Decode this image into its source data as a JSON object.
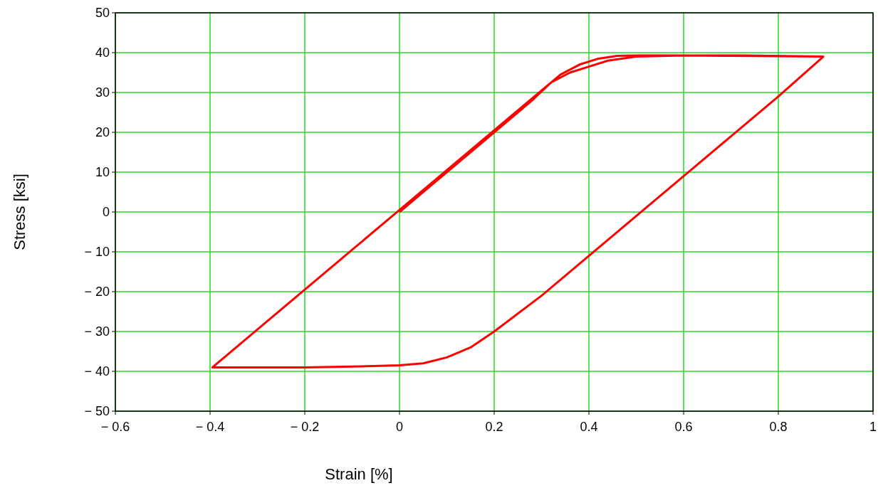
{
  "chart_data": {
    "type": "line",
    "xlabel": "Strain [%]",
    "ylabel": "Stress [ksi]",
    "xlim": [
      -0.6,
      1
    ],
    "xticks": [
      {
        "value": -0.6,
        "label": "− 0.6"
      },
      {
        "value": -0.4,
        "label": "− 0.4"
      },
      {
        "value": -0.2,
        "label": "− 0.2"
      },
      0,
      0.2,
      0.4,
      0.6,
      0.8,
      1
    ],
    "ylim": [
      -50,
      50
    ],
    "yticks": [
      {
        "value": -50,
        "label": "− 50"
      },
      {
        "value": -40,
        "label": "− 40"
      },
      {
        "value": -30,
        "label": "− 30"
      },
      {
        "value": -20,
        "label": "− 20"
      },
      {
        "value": -10,
        "label": "− 10"
      },
      0,
      10,
      20,
      30,
      40,
      50
    ],
    "grid": true,
    "marker": "none",
    "line_style": "solid",
    "series": [
      {
        "color": "#ff0000",
        "x": [
          0,
          0.1,
          0.2,
          0.28,
          0.32,
          0.36,
          0.4,
          0.44,
          0.5,
          0.6,
          0.73,
          0.895,
          0.8,
          0.7,
          0.6,
          0.5,
          0.4,
          0.3,
          0.2,
          0.15,
          0.1,
          0.05,
          0,
          -0.1,
          -0.2,
          -0.3,
          -0.395,
          -0.3,
          -0.2,
          -0.1,
          0,
          0.1,
          0.2,
          0.3,
          0.34,
          0.38,
          0.42,
          0.46,
          0.5,
          0.6,
          0.7,
          0.895
        ],
        "values": [
          0,
          10,
          20,
          28,
          32.5,
          35,
          36.5,
          38,
          39,
          39.3,
          39.3,
          39,
          29,
          19,
          9,
          -1,
          -11,
          -21,
          -30,
          -34,
          -36.5,
          -38,
          -38.5,
          -38.8,
          -39,
          -39,
          -39,
          -29.5,
          -19.5,
          -9.5,
          0.5,
          10.5,
          20.5,
          30.5,
          34.5,
          37,
          38.5,
          39.2,
          39.3,
          39.3,
          39.2,
          39
        ]
      }
    ]
  }
}
